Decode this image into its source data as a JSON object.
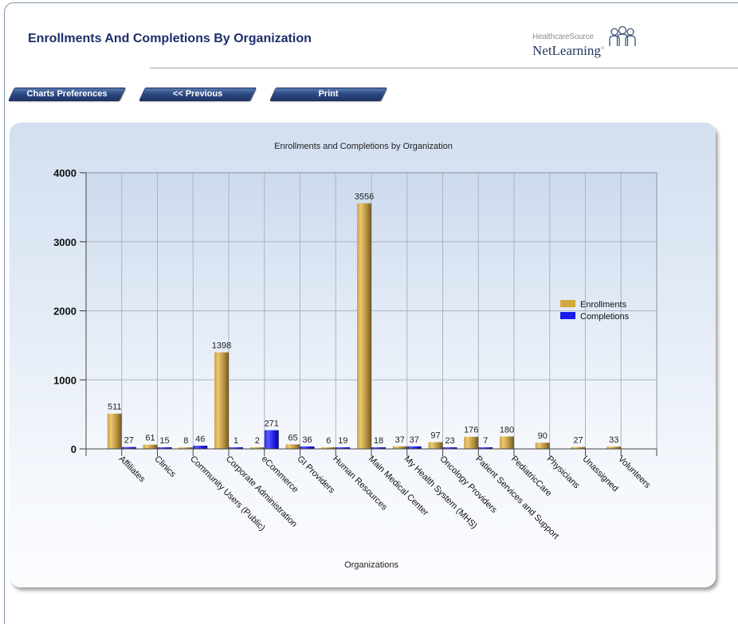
{
  "header": {
    "title": "Enrollments And Completions By Organization",
    "logo": {
      "brand_top": "HealthcareSource",
      "brand_bottom": "NetLearning",
      "registered_mark": "®",
      "icon": "people-group-icon"
    }
  },
  "toolbar": {
    "buttons": [
      {
        "label": "Charts Preferences"
      },
      {
        "label": "<< Previous"
      },
      {
        "label": "Print"
      }
    ]
  },
  "colors": {
    "enrollments": "#d4a83a",
    "completions": "#1a1aee",
    "title_text": "#1d2f6b",
    "button": "#2e4b84"
  },
  "chart_data": {
    "type": "bar",
    "title": "Enrollments and Completions by Organization",
    "xlabel": "Organizations",
    "ylabel": "",
    "ylim": [
      0,
      4000
    ],
    "yticks": [
      0,
      1000,
      2000,
      3000,
      4000
    ],
    "grid": true,
    "legend": "right",
    "categories": [
      "Affiliates",
      "Clinics",
      "Community Users (Public)",
      "Corporate Administration",
      "eCommerce",
      "GI Providers",
      "Human Resources",
      "Main Medical Center",
      "My Health System (MHS)",
      "Oncology Providers",
      "Patient Services and Support",
      "PediatricCare",
      "Physicians",
      "Unassigned",
      "Volunteers"
    ],
    "series": [
      {
        "name": "Enrollments",
        "values": [
          511,
          61,
          8,
          1398,
          2,
          65,
          6,
          3556,
          37,
          97,
          176,
          180,
          90,
          27,
          33
        ]
      },
      {
        "name": "Completions",
        "values": [
          27,
          15,
          46,
          1,
          271,
          36,
          19,
          18,
          37,
          23,
          7,
          null,
          null,
          null,
          null
        ]
      }
    ]
  }
}
